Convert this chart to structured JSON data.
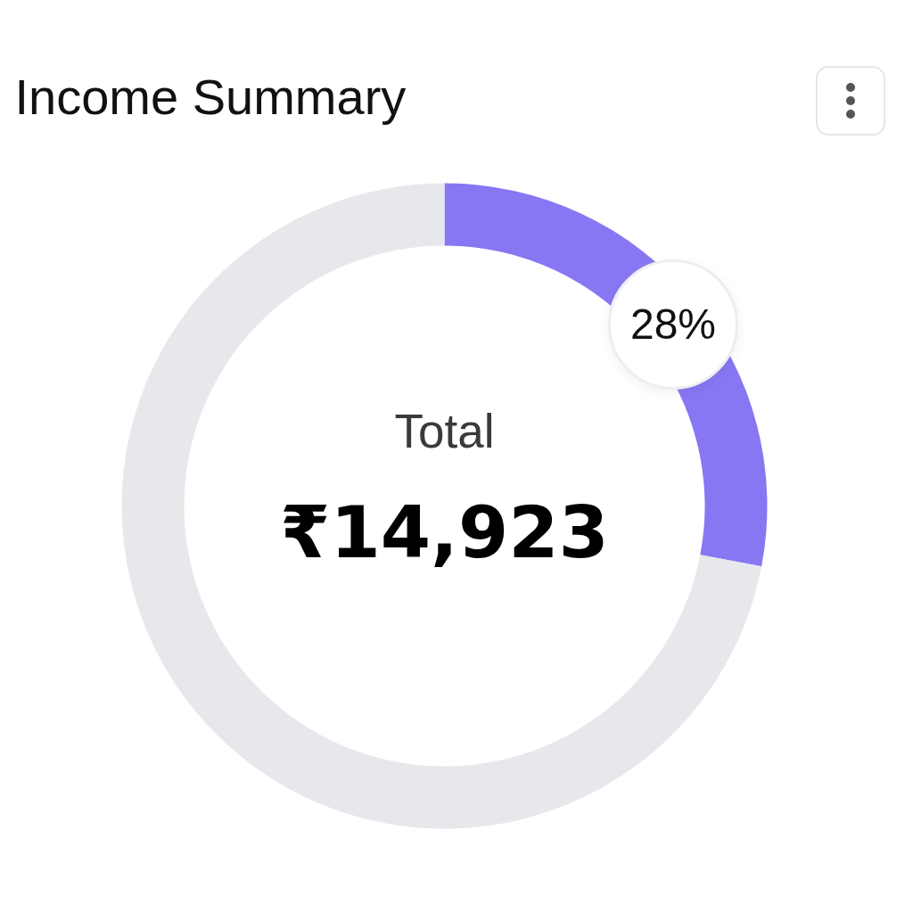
{
  "chart_data": {
    "type": "donut",
    "title": "Income Summary",
    "categories": [
      null,
      null
    ],
    "values": [
      28,
      72
    ],
    "colors": [
      "#8877f2",
      "#e7e8ec"
    ],
    "value_labels": [
      "28%",
      null
    ],
    "annotations": [
      "Total",
      "₹14,923"
    ]
  }
}
